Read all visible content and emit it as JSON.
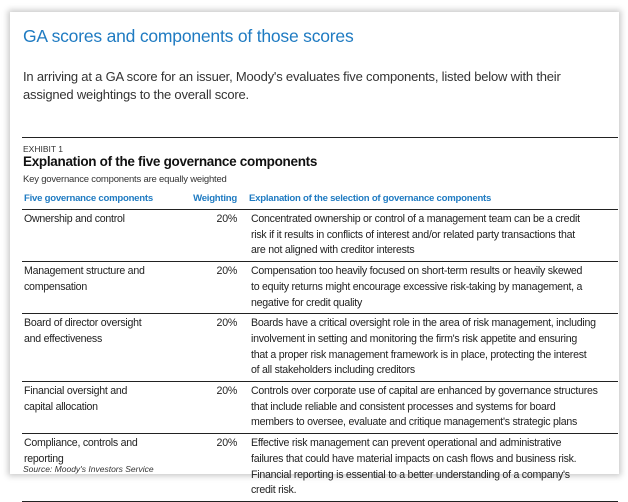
{
  "title": "GA scores and components of those scores",
  "intro": "In arriving at a GA score for an issuer, Moody's evaluates five components, listed below with their assigned weightings to the overall score.",
  "exhibit": {
    "label": "EXHIBIT 1",
    "title": "Explanation of the five governance components",
    "subtitle": "Key governance components are equally weighted",
    "headers": [
      "Five governance components",
      "Weighting",
      "Explanation of the selection of governance components"
    ],
    "rows": [
      {
        "component": [
          "Ownership and control"
        ],
        "weighting": "20%",
        "explanation": [
          "Concentrated ownership or control of a management team can be a credit",
          "risk if it results in conflicts of interest and/or related party transactions that",
          "are not aligned with creditor interests"
        ]
      },
      {
        "component": [
          "Management structure and",
          "compensation"
        ],
        "weighting": "20%",
        "explanation": [
          "Compensation too heavily focused on short-term results or heavily skewed",
          "to equity returns might encourage excessive risk-taking by management, a",
          "negative for credit quality"
        ]
      },
      {
        "component": [
          "Board of director oversight",
          "and effectiveness"
        ],
        "weighting": "20%",
        "explanation": [
          "Boards have a critical oversight role in the area of risk management, including",
          "involvement in setting and monitoring the firm's risk appetite and ensuring",
          "that a proper risk management framework is in place, protecting the interest",
          "of all stakeholders including creditors"
        ]
      },
      {
        "component": [
          "Financial oversight and",
          "capital allocation"
        ],
        "weighting": "20%",
        "explanation": [
          "Controls over corporate use of capital are enhanced by governance structures",
          "that include reliable and consistent processes and systems for board",
          "members to oversee, evaluate and critique management's strategic plans"
        ]
      },
      {
        "component": [
          "Compliance, controls and",
          "reporting"
        ],
        "weighting": "20%",
        "explanation": [
          "Effective risk management can prevent operational and administrative",
          "failures that could have material impacts on cash flows and business risk.",
          "Financial reporting is essential to a better understanding of a company's",
          "credit risk."
        ]
      }
    ],
    "source": "Source: Moody's Investors Service"
  },
  "colors": {
    "accent": "#1f7bc2",
    "text": "#222222"
  }
}
